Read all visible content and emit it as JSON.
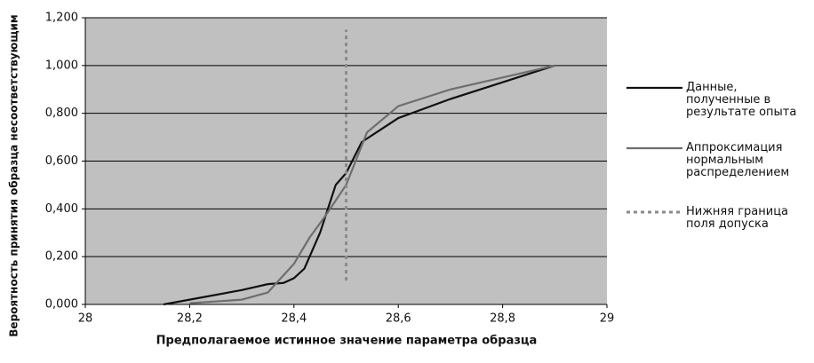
{
  "chart_data": {
    "type": "line",
    "xlabel": "Предполагаемое истинное значение параметра образца",
    "ylabel": "Вероятность принятия образца несоответствующим",
    "xlim": [
      28,
      29
    ],
    "xticks": [
      28,
      {
        "value": 28.2,
        "label": "28,2"
      },
      {
        "value": 28.4,
        "label": "28,4"
      },
      {
        "value": 28.6,
        "label": "28,6"
      },
      {
        "value": 28.8,
        "label": "28,8"
      },
      29
    ],
    "ylim": [
      0,
      1.2
    ],
    "yticks": [
      {
        "value": 0,
        "label": "0,000"
      },
      {
        "value": 0.2,
        "label": "0,200"
      },
      {
        "value": 0.4,
        "label": "0,400"
      },
      {
        "value": 0.6,
        "label": "0,600"
      },
      {
        "value": 0.8,
        "label": "0,800"
      },
      {
        "value": 1.0,
        "label": "1,000"
      },
      {
        "value": 1.2,
        "label": "1,200"
      }
    ],
    "grid": true,
    "legend": "right",
    "series": [
      {
        "name": "Данные, полученные в результате опыта",
        "color": "#111111",
        "dash": false,
        "x": [
          28.15,
          28.2,
          28.3,
          28.35,
          28.38,
          28.4,
          28.42,
          28.45,
          28.48,
          28.5,
          28.53,
          28.6,
          28.7,
          28.8,
          28.9
        ],
        "values": [
          0,
          0.02,
          0.06,
          0.085,
          0.09,
          0.11,
          0.15,
          0.3,
          0.5,
          0.55,
          0.68,
          0.78,
          0.86,
          0.93,
          1.0
        ]
      },
      {
        "name": "Аппроксимация нормальным распределением",
        "color": "#6e6e6e",
        "dash": false,
        "x": [
          28.2,
          28.3,
          28.35,
          28.4,
          28.43,
          28.46,
          28.5,
          28.54,
          28.6,
          28.7,
          28.8,
          28.9
        ],
        "values": [
          0.005,
          0.02,
          0.05,
          0.17,
          0.28,
          0.37,
          0.5,
          0.72,
          0.83,
          0.9,
          0.95,
          1.0
        ]
      },
      {
        "name": "Нижняя граница поля допуска",
        "color": "#8a8a8a",
        "dash": true,
        "x": [
          28.5,
          28.5
        ],
        "values": [
          0.1,
          1.15
        ]
      }
    ]
  }
}
